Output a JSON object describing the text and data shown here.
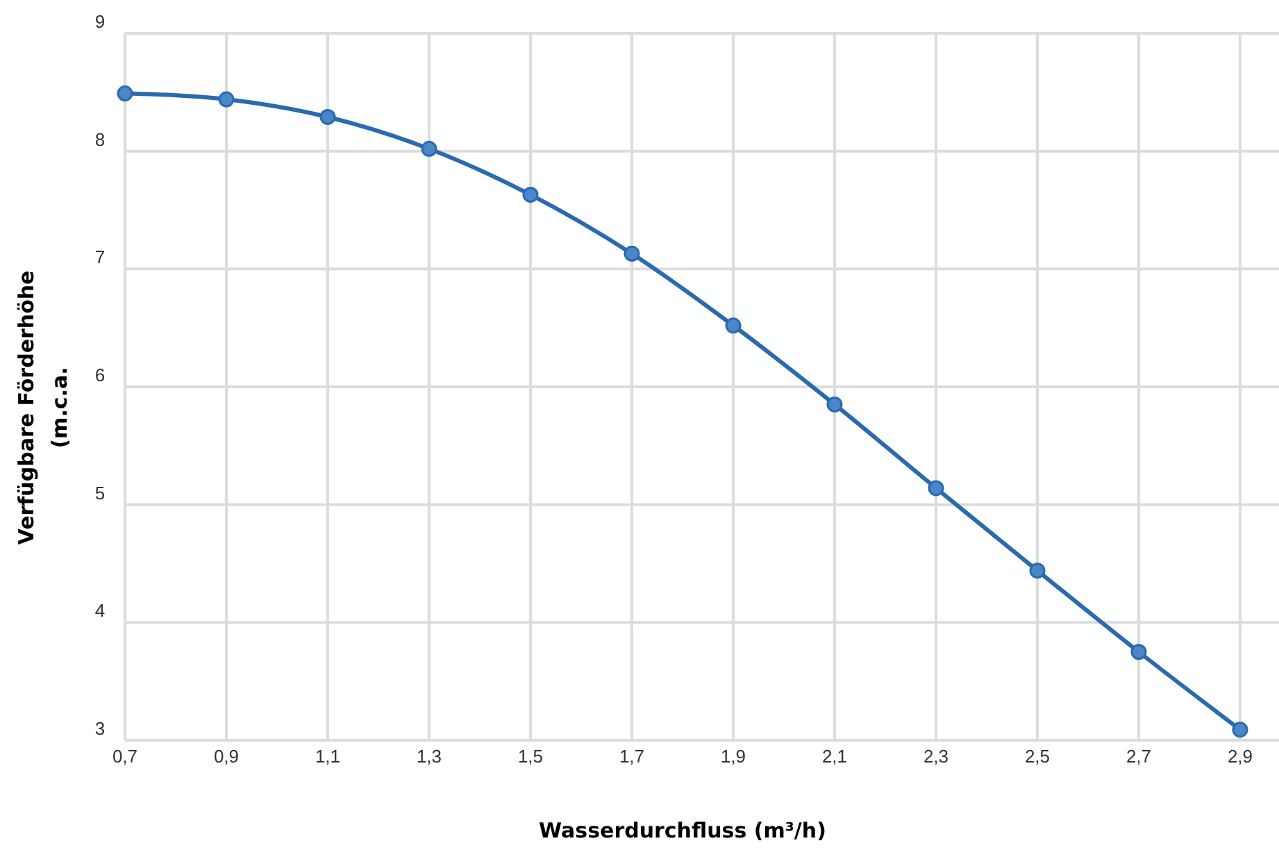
{
  "chart_data": {
    "type": "line",
    "xlabel": "Wasserdurchfluss (m³/h)",
    "ylabel": "Verfügbare Förderhöhe (m.c.a.",
    "x": [
      0.7,
      0.9,
      1.1,
      1.3,
      1.5,
      1.7,
      1.9,
      2.1,
      2.3,
      2.5,
      2.7,
      2.9
    ],
    "series": [
      {
        "color": "#2a6ab0",
        "values": [
          8.49,
          8.44,
          8.29,
          8.02,
          7.63,
          7.13,
          6.52,
          5.85,
          5.14,
          4.44,
          3.75,
          3.09
        ]
      }
    ],
    "xlim": [
      0.7,
      2.9
    ],
    "xticks": [
      {
        "value": 0.7,
        "label": "0,7"
      },
      {
        "value": 0.9,
        "label": "0,9"
      },
      {
        "value": 1.1,
        "label": "1,1"
      },
      {
        "value": 1.3,
        "label": "1,3"
      },
      {
        "value": 1.5,
        "label": "1,5"
      },
      {
        "value": 1.7,
        "label": "1,7"
      },
      {
        "value": 1.9,
        "label": "1,9"
      },
      {
        "value": 2.1,
        "label": "2,1"
      },
      {
        "value": 2.3,
        "label": "2,3"
      },
      {
        "value": 2.5,
        "label": "2,5"
      },
      {
        "value": 2.7,
        "label": "2,7"
      },
      {
        "value": 2.9,
        "label": "2,9"
      }
    ],
    "ylim": [
      3,
      9
    ],
    "yticks": [
      3,
      4,
      5,
      6,
      7,
      8,
      9
    ],
    "grid": true,
    "marker": "circle",
    "line_style": "solid"
  }
}
